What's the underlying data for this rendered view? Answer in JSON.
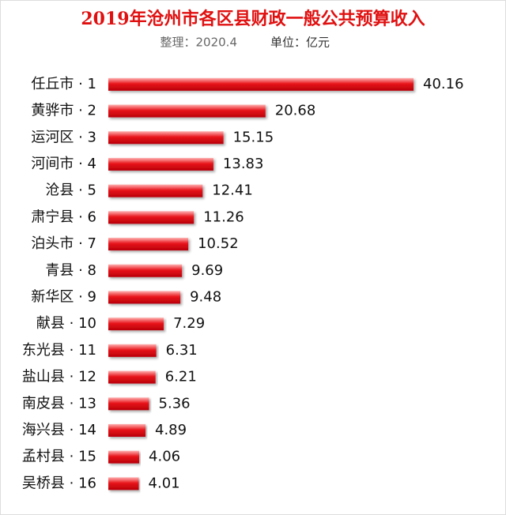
{
  "chart_data": {
    "type": "bar",
    "orientation": "horizontal",
    "title": "2019年沧州市各区县财政一般公共预算收入",
    "source_note": "整理：2020.4",
    "unit_note": "单位：亿元",
    "categories": [
      "任丘市 · 1",
      "黄骅市 · 2",
      "运河区 · 3",
      "河间市 · 4",
      "沧县 · 5",
      "肃宁县 · 6",
      "泊头市 · 7",
      "青县 · 8",
      "新华区 · 9",
      "献县 · 10",
      "东光县 · 11",
      "盐山县 · 12",
      "南皮县 · 13",
      "海兴县 · 14",
      "孟村县 · 15",
      "吴桥县 · 16"
    ],
    "values": [
      40.16,
      20.68,
      15.15,
      13.83,
      12.41,
      11.26,
      10.52,
      9.69,
      9.48,
      7.29,
      6.31,
      6.21,
      5.36,
      4.89,
      4.06,
      4.01
    ],
    "color": "#e8141b"
  }
}
